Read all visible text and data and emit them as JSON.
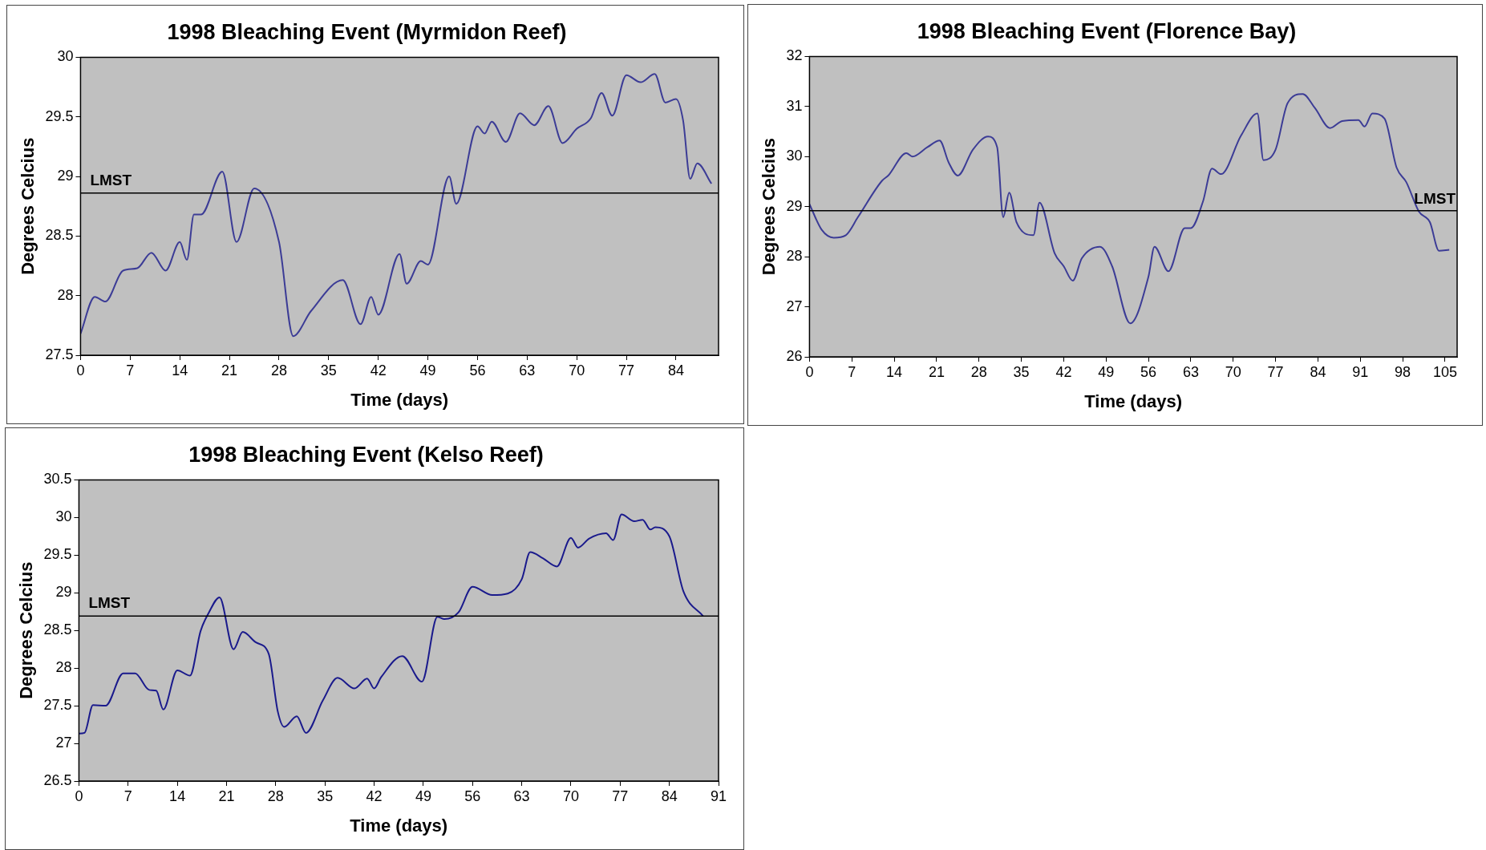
{
  "chart_data": [
    {
      "type": "line",
      "title": "1998 Bleaching Event (Myrmidon Reef)",
      "xlabel": "Time (days)",
      "ylabel": "Degrees Celcius",
      "x": [
        0,
        2,
        3.5,
        6,
        8,
        10,
        12,
        14,
        15,
        16,
        17,
        20,
        22,
        24.5,
        28,
        30,
        32.5,
        37,
        39.5,
        41,
        42,
        45,
        46,
        48,
        49,
        52,
        53,
        56,
        57,
        58,
        60,
        62,
        64,
        66,
        68,
        70,
        72,
        73.5,
        75,
        77,
        79,
        81,
        82.5,
        84,
        85,
        86,
        87,
        89
      ],
      "series": [
        {
          "color": "#3c3c96",
          "values": [
            27.68,
            27.99,
            27.95,
            28.21,
            28.23,
            28.36,
            28.21,
            28.45,
            28.3,
            28.68,
            28.68,
            29.04,
            28.45,
            28.9,
            28.45,
            27.66,
            27.87,
            28.13,
            27.76,
            27.99,
            27.84,
            28.35,
            28.1,
            28.29,
            28.26,
            29.0,
            28.77,
            29.42,
            29.36,
            29.46,
            29.29,
            29.53,
            29.43,
            29.59,
            29.28,
            29.4,
            29.49,
            29.7,
            29.51,
            29.85,
            29.79,
            29.86,
            29.62,
            29.65,
            29.47,
            28.98,
            29.11,
            28.94
          ]
        }
      ],
      "xlim": [
        0,
        90
      ],
      "xticks": [
        0,
        7,
        14,
        21,
        28,
        35,
        42,
        49,
        56,
        63,
        70,
        77,
        84
      ],
      "ylim": [
        27.5,
        30
      ],
      "yticks": [
        27.5,
        28,
        28.5,
        29,
        29.5,
        30
      ],
      "ref_lines": [
        {
          "axis": "y",
          "value": 28.86,
          "label": "LMST",
          "color": "#000000"
        }
      ],
      "grid": false,
      "legend": false,
      "marker": "none"
    },
    {
      "type": "line",
      "title": "1998 Bleaching Event (Florence Bay)",
      "xlabel": "Time (days)",
      "ylabel": "Degrees Celcius",
      "x": [
        0,
        2,
        4,
        6,
        8,
        12,
        13,
        16,
        17,
        19.5,
        21.5,
        23,
        24.5,
        27,
        29.5,
        31,
        32,
        33,
        34.2,
        37,
        38,
        40.5,
        42,
        43.5,
        45,
        48,
        50,
        53,
        56,
        57,
        59.3,
        62,
        63,
        65,
        66.5,
        68,
        71.3,
        74,
        75,
        77,
        79,
        81.5,
        83.5,
        86,
        88,
        90.7,
        91.7,
        93,
        95,
        97,
        98.6,
        100.7,
        102.5,
        104,
        105.7
      ],
      "series": [
        {
          "color": "#3c3c96",
          "values": [
            29.05,
            28.54,
            28.38,
            28.43,
            28.79,
            29.52,
            29.62,
            30.07,
            30.0,
            30.19,
            30.32,
            29.88,
            29.62,
            30.14,
            30.4,
            30.19,
            28.79,
            29.28,
            28.69,
            28.43,
            29.08,
            28.07,
            27.81,
            27.52,
            27.97,
            28.2,
            27.81,
            26.67,
            27.6,
            28.2,
            27.71,
            28.57,
            28.57,
            29.1,
            29.76,
            29.65,
            30.42,
            30.86,
            29.93,
            30.14,
            31.07,
            31.25,
            30.97,
            30.57,
            30.71,
            30.73,
            30.6,
            30.86,
            30.76,
            29.78,
            29.49,
            28.9,
            28.69,
            28.12,
            28.14
          ]
        }
      ],
      "xlim": [
        0,
        107
      ],
      "xticks": [
        0,
        7,
        14,
        21,
        28,
        35,
        42,
        49,
        56,
        63,
        70,
        77,
        84,
        91,
        98,
        105
      ],
      "ylim": [
        26,
        32
      ],
      "yticks": [
        26,
        27,
        28,
        29,
        30,
        31,
        32
      ],
      "ref_lines": [
        {
          "axis": "y",
          "value": 28.92,
          "label": "LMST",
          "color": "#000000"
        }
      ],
      "grid": false,
      "legend": false,
      "marker": "none"
    },
    {
      "type": "line",
      "title": "1998 Bleaching Event (Kelso Reef)",
      "xlabel": "Time (days)",
      "ylabel": "Degrees Celcius",
      "x": [
        0,
        0.8,
        2,
        3.8,
        6.3,
        8,
        10,
        11,
        12,
        14,
        15.8,
        17.3,
        18.5,
        20,
        22,
        23.3,
        25.2,
        27,
        28.3,
        29.2,
        31,
        32.3,
        34.7,
        36.8,
        39.2,
        41,
        42,
        43,
        46,
        48.8,
        51,
        52,
        54,
        56,
        58.8,
        61,
        63,
        64.2,
        66,
        68,
        70,
        71,
        72.6,
        75,
        76,
        77.2,
        79,
        80.2,
        81.3,
        82,
        84,
        86,
        88.8
      ],
      "series": [
        {
          "color": "#1a1a8c",
          "values": [
            27.13,
            27.14,
            27.51,
            27.5,
            27.93,
            27.93,
            27.71,
            27.7,
            27.45,
            27.97,
            27.9,
            28.49,
            28.74,
            28.94,
            28.25,
            28.48,
            28.34,
            28.19,
            27.42,
            27.22,
            27.36,
            27.14,
            27.57,
            27.87,
            27.73,
            27.86,
            27.73,
            27.88,
            28.16,
            27.82,
            28.68,
            28.65,
            28.74,
            29.08,
            28.97,
            28.99,
            29.18,
            29.54,
            29.46,
            29.35,
            29.73,
            29.6,
            29.72,
            29.79,
            29.7,
            30.04,
            29.95,
            29.97,
            29.84,
            29.87,
            29.75,
            29.02,
            28.69
          ]
        }
      ],
      "xlim": [
        0,
        91
      ],
      "xticks": [
        0,
        7,
        14,
        21,
        28,
        35,
        42,
        49,
        56,
        63,
        70,
        77,
        84,
        91
      ],
      "ylim": [
        26.5,
        30.5
      ],
      "yticks": [
        26.5,
        27,
        27.5,
        28,
        28.5,
        29,
        29.5,
        30,
        30.5
      ],
      "ref_lines": [
        {
          "axis": "y",
          "value": 28.69,
          "label": "LMST",
          "color": "#000000"
        }
      ],
      "grid": false,
      "legend": false,
      "marker": "none"
    }
  ]
}
